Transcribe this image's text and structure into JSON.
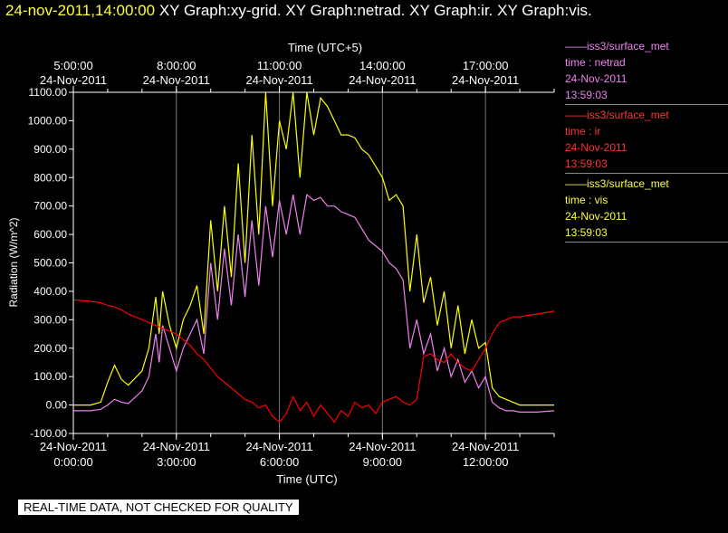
{
  "header": {
    "timestamp": "24-nov-2011,14:00:00",
    "titles": [
      "XY Graph:xy-grid.",
      "XY Graph:netrad.",
      "XY Graph:ir.",
      "XY Graph:vis."
    ]
  },
  "chart_data": {
    "type": "line",
    "title": "",
    "xlabel": "Time (UTC)",
    "x2label": "Time (UTC+5)",
    "ylabel": "Radiation  (W/m^2)",
    "x_unit": "hours UTC on 24-Nov-2011",
    "xlim": [
      0,
      14
    ],
    "ylim": [
      -100,
      1100
    ],
    "grid": true,
    "yticks": [
      "-100.00",
      "0.00",
      "100.00",
      "200.00",
      "300.00",
      "400.00",
      "500.00",
      "600.00",
      "700.00",
      "800.00",
      "900.00",
      "1000.00",
      "1100.00"
    ],
    "xticks_bottom": [
      {
        "date": "24-Nov-2011",
        "time": "0:00:00"
      },
      {
        "date": "24-Nov-2011",
        "time": "3:00:00"
      },
      {
        "date": "24-Nov-2011",
        "time": "6:00:00"
      },
      {
        "date": "24-Nov-2011",
        "time": "9:00:00"
      },
      {
        "date": "24-Nov-2011",
        "time": "12:00:00"
      }
    ],
    "xticks_top": [
      {
        "time": "5:00:00",
        "date": "24-Nov-2011"
      },
      {
        "time": "8:00:00",
        "date": "24-Nov-2011"
      },
      {
        "time": "11:00:00",
        "date": "24-Nov-2011"
      },
      {
        "time": "14:00:00",
        "date": "24-Nov-2011"
      },
      {
        "time": "17:00:00",
        "date": "24-Nov-2011"
      }
    ],
    "series": [
      {
        "name": "vis",
        "color": "#ffff00",
        "x": [
          0,
          0.5,
          0.8,
          1.0,
          1.2,
          1.4,
          1.6,
          2.0,
          2.2,
          2.4,
          2.5,
          2.6,
          2.8,
          3.0,
          3.2,
          3.4,
          3.6,
          3.8,
          4.0,
          4.2,
          4.4,
          4.6,
          4.8,
          5.0,
          5.2,
          5.4,
          5.6,
          5.8,
          6.0,
          6.2,
          6.4,
          6.6,
          6.8,
          7.0,
          7.2,
          7.4,
          7.6,
          7.8,
          8.0,
          8.2,
          8.4,
          8.6,
          8.8,
          9.0,
          9.2,
          9.4,
          9.6,
          9.8,
          10.0,
          10.2,
          10.4,
          10.6,
          10.8,
          11.0,
          11.2,
          11.4,
          11.6,
          11.8,
          12.0,
          12.2,
          12.4,
          12.6,
          12.8,
          13.0,
          13.5,
          14.0
        ],
        "y": [
          0,
          0,
          10,
          80,
          140,
          90,
          70,
          120,
          200,
          380,
          250,
          400,
          280,
          200,
          300,
          350,
          420,
          250,
          650,
          400,
          700,
          450,
          850,
          500,
          950,
          600,
          1100,
          700,
          1000,
          900,
          1100,
          800,
          1100,
          950,
          1080,
          1050,
          1000,
          950,
          950,
          940,
          900,
          880,
          840,
          800,
          720,
          740,
          700,
          400,
          600,
          360,
          450,
          280,
          400,
          200,
          350,
          180,
          300,
          200,
          220,
          60,
          30,
          20,
          10,
          0,
          0,
          0
        ]
      },
      {
        "name": "netrad",
        "color": "#ee82ee",
        "x": [
          0,
          0.5,
          0.8,
          1.0,
          1.2,
          1.4,
          1.6,
          2.0,
          2.2,
          2.4,
          2.5,
          2.6,
          2.8,
          3.0,
          3.2,
          3.4,
          3.6,
          3.8,
          4.0,
          4.2,
          4.4,
          4.6,
          4.8,
          5.0,
          5.2,
          5.4,
          5.6,
          5.8,
          6.0,
          6.2,
          6.4,
          6.6,
          6.8,
          7.0,
          7.2,
          7.4,
          7.6,
          7.8,
          8.0,
          8.2,
          8.4,
          8.6,
          8.8,
          9.0,
          9.2,
          9.4,
          9.6,
          9.8,
          10.0,
          10.2,
          10.4,
          10.6,
          10.8,
          11.0,
          11.2,
          11.4,
          11.6,
          11.8,
          12.0,
          12.2,
          12.4,
          12.6,
          12.8,
          13.0,
          13.5,
          14.0
        ],
        "y": [
          -20,
          -20,
          -15,
          0,
          20,
          10,
          5,
          50,
          100,
          250,
          150,
          280,
          200,
          120,
          200,
          250,
          300,
          180,
          500,
          300,
          550,
          350,
          600,
          380,
          650,
          420,
          700,
          520,
          720,
          600,
          740,
          600,
          740,
          720,
          730,
          700,
          700,
          680,
          670,
          660,
          620,
          580,
          560,
          540,
          500,
          480,
          440,
          200,
          300,
          180,
          250,
          120,
          200,
          100,
          160,
          80,
          120,
          60,
          100,
          10,
          -10,
          -20,
          -20,
          -25,
          -25,
          -20
        ]
      },
      {
        "name": "ir",
        "color": "#ff0000",
        "x": [
          0,
          0.5,
          0.8,
          1.0,
          1.2,
          1.4,
          1.6,
          1.8,
          2.0,
          2.2,
          2.4,
          2.6,
          2.8,
          3.0,
          3.2,
          3.4,
          3.6,
          3.8,
          4.0,
          4.2,
          4.4,
          4.6,
          4.8,
          5.0,
          5.2,
          5.4,
          5.6,
          5.8,
          6.0,
          6.2,
          6.4,
          6.6,
          6.8,
          7.0,
          7.2,
          7.4,
          7.6,
          7.8,
          8.0,
          8.2,
          8.4,
          8.6,
          8.8,
          9.0,
          9.2,
          9.4,
          9.6,
          9.8,
          10.0,
          10.2,
          10.4,
          10.6,
          10.8,
          11.0,
          11.2,
          11.4,
          11.6,
          11.8,
          12.0,
          12.2,
          12.4,
          12.6,
          12.8,
          13.0,
          13.2,
          13.5,
          14.0
        ],
        "y": [
          370,
          365,
          360,
          350,
          345,
          335,
          320,
          310,
          300,
          290,
          280,
          270,
          260,
          250,
          230,
          210,
          180,
          160,
          130,
          100,
          80,
          60,
          40,
          20,
          10,
          -10,
          0,
          -40,
          -60,
          -30,
          30,
          -20,
          10,
          -40,
          0,
          -30,
          -60,
          -20,
          -40,
          10,
          -10,
          0,
          -30,
          10,
          20,
          30,
          10,
          0,
          20,
          170,
          180,
          160,
          150,
          180,
          150,
          130,
          120,
          160,
          200,
          250,
          290,
          300,
          310,
          310,
          315,
          320,
          330
        ]
      }
    ]
  },
  "legend": {
    "entries": [
      {
        "source": "iss3/surface_met",
        "label": "time : netrad",
        "date": "24-Nov-2011",
        "time": "13:59:03",
        "color": "#ee82ee"
      },
      {
        "source": "iss3/surface_met",
        "label": "time : ir",
        "date": "24-Nov-2011",
        "time": "13:59:03",
        "color": "#ff3333"
      },
      {
        "source": "iss3/surface_met",
        "label": "time : vis",
        "date": "24-Nov-2011",
        "time": "13:59:03",
        "color": "#ffff33"
      }
    ]
  },
  "notice": "REAL-TIME DATA, NOT CHECKED FOR QUALITY"
}
